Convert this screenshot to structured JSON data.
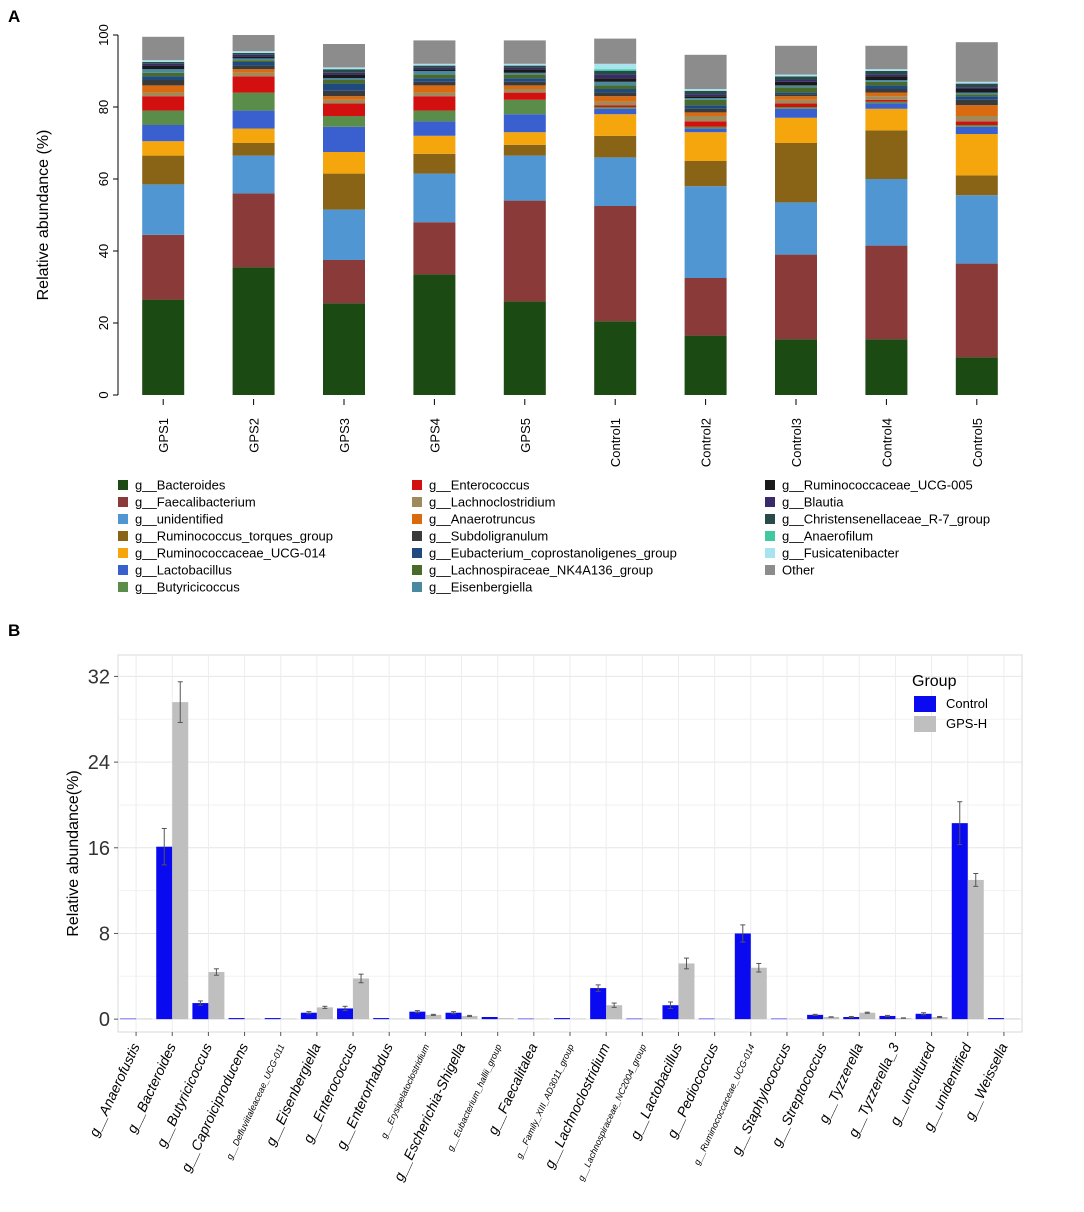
{
  "panel_labels": {
    "a": "A",
    "b": "B"
  },
  "chart_data": [
    {
      "type": "bar",
      "stacked": true,
      "title": "",
      "ylabel": "Relative abundance (%)",
      "xlabel": "",
      "ylim": [
        0,
        100
      ],
      "yticks": [
        0,
        20,
        40,
        60,
        80,
        100
      ],
      "categories": [
        "GPS1",
        "GPS2",
        "GPS3",
        "GPS4",
        "GPS5",
        "Control1",
        "Control2",
        "Control3",
        "Control4",
        "Control5"
      ],
      "series": [
        {
          "name": "g__Bacteroides",
          "color": "#1b4a12",
          "values": [
            26.5,
            35.5,
            25.5,
            33.5,
            26,
            20.5,
            16.5,
            15.5,
            15.5,
            10.5
          ]
        },
        {
          "name": "g__Faecalibacterium",
          "color": "#8b3a3a",
          "values": [
            18,
            20.5,
            12,
            14.5,
            28,
            32,
            16,
            23.5,
            26,
            26
          ]
        },
        {
          "name": "g__unidentified",
          "color": "#5096d2",
          "values": [
            14,
            10.5,
            14,
            13.5,
            12.5,
            13.5,
            25.5,
            14.5,
            18.5,
            19
          ]
        },
        {
          "name": "g__Ruminococcus_torques_group",
          "color": "#8a6416",
          "values": [
            8,
            3.5,
            10,
            5.5,
            3,
            6,
            7,
            16.5,
            13.5,
            5.5
          ]
        },
        {
          "name": "g__Ruminococcaceae_UCG-014",
          "color": "#f5a60d",
          "values": [
            4,
            4,
            6,
            5,
            3.5,
            6,
            8,
            7,
            6,
            11.5
          ]
        },
        {
          "name": "g__Lactobacillus",
          "color": "#3a5fcf",
          "values": [
            4.5,
            5,
            7,
            4,
            5,
            1.5,
            1,
            2.5,
            1.5,
            2
          ]
        },
        {
          "name": "g__Butyricicoccus",
          "color": "#5a8c4a",
          "values": [
            4,
            5,
            3,
            3,
            4,
            0.5,
            0.5,
            0.5,
            0.5,
            0.5
          ]
        },
        {
          "name": "g__Enterococcus",
          "color": "#d31010",
          "values": [
            4,
            4.5,
            3.5,
            4,
            2,
            0.5,
            1.5,
            1,
            0.5,
            1
          ]
        },
        {
          "name": "g__Lachnoclostridium",
          "color": "#9e8a5a",
          "values": [
            1,
            1,
            1,
            1,
            1,
            1,
            1.5,
            1,
            1,
            1.5
          ]
        },
        {
          "name": "g__Anaerotruncus",
          "color": "#d96a10",
          "values": [
            2,
            1,
            1,
            2,
            1,
            1.5,
            1,
            1,
            1,
            3
          ]
        },
        {
          "name": "g__Subdoligranulum",
          "color": "#3a3a3a",
          "values": [
            1.5,
            1,
            1.5,
            1,
            1,
            1,
            1,
            0.5,
            1,
            1.5
          ]
        },
        {
          "name": "g__Eubacterium_coprostanoligenes_group",
          "color": "#1f4a7f",
          "values": [
            1,
            1,
            2,
            1,
            1,
            1,
            1,
            0.5,
            1,
            1
          ]
        },
        {
          "name": "g__Lachnospiraceae_NK4A136_group",
          "color": "#4a6a2a",
          "values": [
            1,
            0.5,
            1,
            1,
            1,
            1,
            1.5,
            1.5,
            1,
            0.5
          ]
        },
        {
          "name": "g__Eisenbergiella",
          "color": "#4a8aa0",
          "values": [
            1,
            0.5,
            0.5,
            1,
            0.5,
            1,
            0.5,
            0.5,
            0.5,
            0.5
          ]
        },
        {
          "name": "g__Ruminococcaceae_UCG-005",
          "color": "#1a1a1a",
          "values": [
            1,
            0.5,
            1,
            0.5,
            1,
            1,
            0.5,
            1,
            1,
            1
          ]
        },
        {
          "name": "g__Blautia",
          "color": "#3a2a6a",
          "values": [
            0.5,
            0.5,
            0.5,
            0.5,
            0.5,
            1,
            0.5,
            0.5,
            0.5,
            0.5
          ]
        },
        {
          "name": "g__Christensenellaceae_R-7_group",
          "color": "#2a4a4a",
          "values": [
            0.5,
            0.5,
            1,
            0.5,
            0.5,
            1,
            1,
            1,
            1,
            1
          ]
        },
        {
          "name": "g__Anaerofilum",
          "color": "#40c8a0",
          "values": [
            0,
            0,
            0,
            0,
            0,
            0.5,
            0,
            0,
            0,
            0
          ]
        },
        {
          "name": "g__Fusicatenibacter",
          "color": "#a8e4ee",
          "values": [
            0.5,
            0.5,
            0.5,
            0.5,
            0.5,
            1.5,
            0.5,
            0.5,
            0.5,
            0.5
          ]
        },
        {
          "name": "Other",
          "color": "#8c8c8c",
          "values": [
            6.5,
            4.5,
            6.5,
            6.5,
            6.5,
            7,
            9.5,
            8,
            6.5,
            11
          ]
        }
      ]
    },
    {
      "type": "bar",
      "title": "",
      "ylabel": "Relative abundance(%)",
      "xlabel": "",
      "ylim": [
        -1.2,
        34
      ],
      "yticks": [
        0,
        8,
        16,
        24,
        32
      ],
      "grid": true,
      "legend": {
        "title": "Group",
        "position": "top-right"
      },
      "categories": [
        "g__Anaerofustis",
        "g__Bacteroides",
        "g__Butyricicoccus",
        "g__Caproiciproducens",
        "g__Defluviitaleaceae_UCG-011",
        "g__Eisenbergiella",
        "g__Enterococcus",
        "g__Enterorhabdus",
        "g__Erysipelatoclostridium",
        "g__Escherichia-Shigella",
        "g__Eubacterium_hallii_group",
        "g__Faecalitalea",
        "g__Family_XIII_AD3011_group",
        "g__Lachnoclostridium",
        "g__Lachnospiraceae_NC2004_group",
        "g__Lactobacillus",
        "g__Pediococcus",
        "g__Ruminococcaceae_UCG-014",
        "g__Staphylococcus",
        "g__Streptococcus",
        "g__Tyzzerella",
        "g__Tyzzerella_3",
        "g__uncultured",
        "g__unidentified",
        "g__Weissella"
      ],
      "series": [
        {
          "name": "Control",
          "color": "#0a0af0",
          "values": [
            0.05,
            16.1,
            1.5,
            0.1,
            0.1,
            0.6,
            1.0,
            0.1,
            0.7,
            0.6,
            0.2,
            0.05,
            0.1,
            2.9,
            0.05,
            1.3,
            0.05,
            8.0,
            0.05,
            0.4,
            0.2,
            0.3,
            0.5,
            18.3,
            0.1
          ],
          "errors": [
            0,
            1.7,
            0.2,
            0,
            0,
            0.1,
            0.2,
            0,
            0.1,
            0.1,
            0,
            0,
            0,
            0.3,
            0,
            0.3,
            0,
            0.8,
            0,
            0.05,
            0.05,
            0.05,
            0.1,
            2.0,
            0
          ]
        },
        {
          "name": "GPS-H",
          "color": "#bfbfbf",
          "values": [
            0.05,
            29.6,
            4.4,
            0.05,
            0.05,
            1.1,
            3.8,
            0.05,
            0.4,
            0.3,
            0.1,
            0.05,
            0.05,
            1.3,
            0.05,
            5.2,
            0.05,
            4.8,
            0.05,
            0.2,
            0.6,
            0.1,
            0.2,
            13.0,
            0.05
          ],
          "errors": [
            0,
            1.9,
            0.3,
            0,
            0,
            0.1,
            0.4,
            0,
            0.05,
            0.05,
            0,
            0,
            0,
            0.2,
            0,
            0.5,
            0,
            0.4,
            0,
            0.02,
            0.05,
            0.02,
            0.05,
            0.6,
            0
          ]
        }
      ]
    }
  ]
}
